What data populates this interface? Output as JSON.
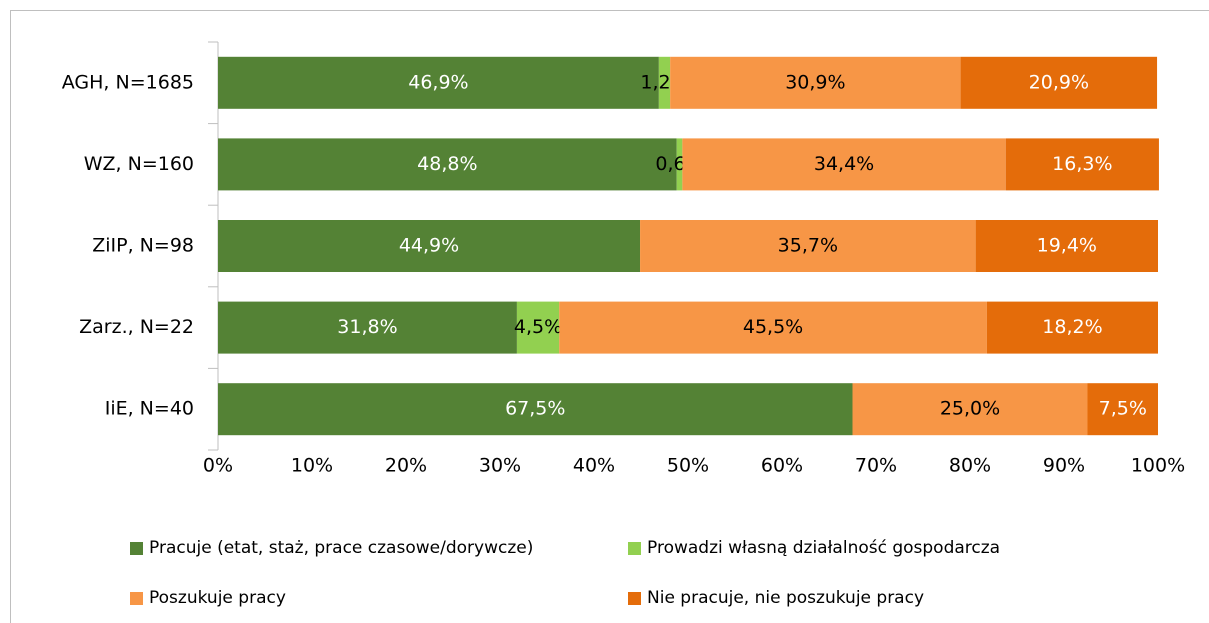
{
  "chart_data": {
    "type": "stacked_barh",
    "categories": [
      "AGH, N=1685",
      "WZ, N=160",
      "ZiIP, N=98",
      "Zarz., N=22",
      "IiE, N=40"
    ],
    "series": [
      {
        "name": "Pracuje (etat, staż, prace czasowe/dorywcze)",
        "color": "#548235",
        "label_color": "#ffffff",
        "values": [
          46.9,
          48.8,
          44.9,
          31.8,
          67.5
        ],
        "value_labels": [
          "46,9%",
          "48,8%",
          "44,9%",
          "31,8%",
          "67,5%"
        ]
      },
      {
        "name": "Prowadzi własną działalność gospodarcza",
        "color": "#92d050",
        "label_color": "#000000",
        "values": [
          1.2,
          0.6,
          null,
          4.5,
          null
        ],
        "value_labels": [
          "1,2%",
          "0,6%",
          null,
          "4,5%",
          null
        ]
      },
      {
        "name": "Poszukuje pracy",
        "color": "#f79646",
        "label_color": "#000000",
        "values": [
          30.9,
          34.4,
          35.7,
          45.5,
          25.0
        ],
        "value_labels": [
          "30,9%",
          "34,4%",
          "35,7%",
          "45,5%",
          "25,0%"
        ]
      },
      {
        "name": "Nie pracuje, nie poszukuje pracy",
        "color": "#e46c0a",
        "label_color": "#ffffff",
        "values": [
          20.9,
          16.3,
          19.4,
          18.2,
          7.5
        ],
        "value_labels": [
          "20,9%",
          "16,3%",
          "19,4%",
          "18,2%",
          "7,5%"
        ]
      }
    ],
    "xlim": [
      0,
      100
    ],
    "xticks": [
      {
        "value": 0,
        "label": "0%"
      },
      {
        "value": 10,
        "label": "10%"
      },
      {
        "value": 20,
        "label": "20%"
      },
      {
        "value": 30,
        "label": "30%"
      },
      {
        "value": 40,
        "label": "40%"
      },
      {
        "value": 50,
        "label": "50%"
      },
      {
        "value": 60,
        "label": "60%"
      },
      {
        "value": 70,
        "label": "70%"
      },
      {
        "value": 80,
        "label": "80%"
      },
      {
        "value": 90,
        "label": "90%"
      },
      {
        "value": 100,
        "label": "100%"
      }
    ],
    "legend": "bottom"
  }
}
